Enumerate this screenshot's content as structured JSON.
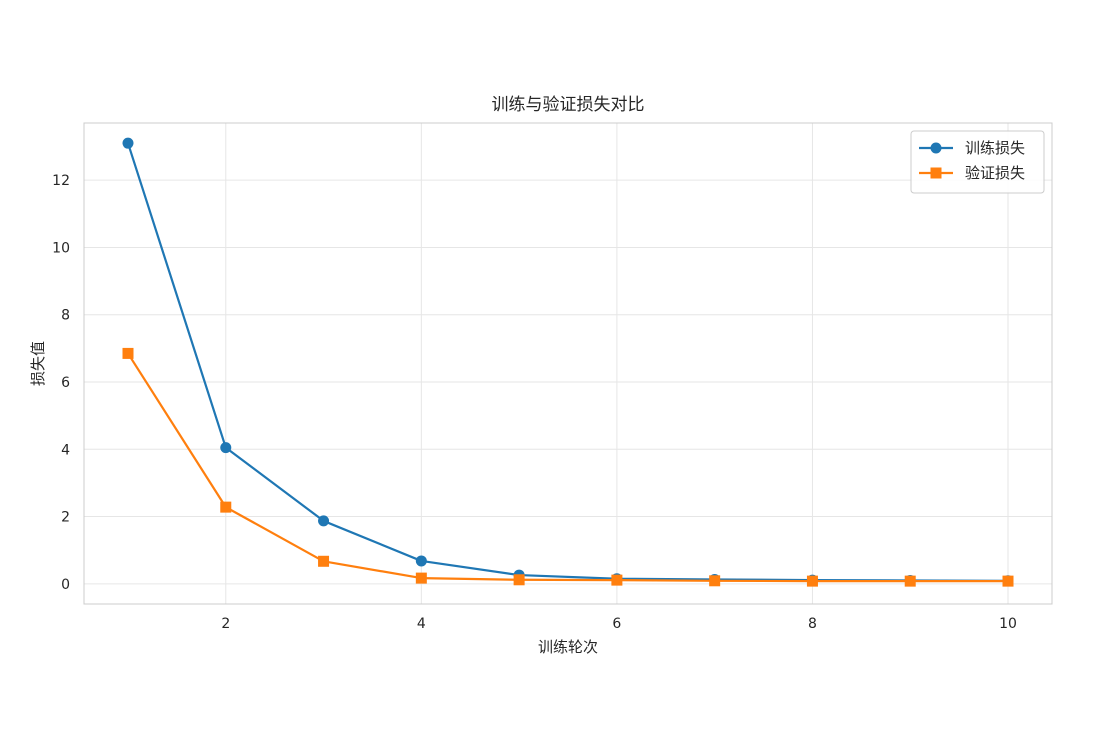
{
  "chart_data": {
    "type": "line",
    "title": "训练与验证损失对比",
    "xlabel": "训练轮次",
    "ylabel": "损失值",
    "xlim": [
      0.55,
      10.45
    ],
    "ylim": [
      -0.6,
      13.7
    ],
    "xticks": [
      2,
      4,
      6,
      8,
      10
    ],
    "yticks": [
      0,
      2,
      4,
      6,
      8,
      10,
      12
    ],
    "grid": true,
    "legend_position": "top-right",
    "x": [
      1,
      2,
      3,
      4,
      5,
      6,
      7,
      8,
      9,
      10
    ],
    "series": [
      {
        "name": "训练损失",
        "color": "#1f77b4",
        "marker": "circle",
        "values": [
          13.1,
          4.05,
          1.87,
          0.68,
          0.26,
          0.15,
          0.13,
          0.11,
          0.1,
          0.09
        ]
      },
      {
        "name": "验证损失",
        "color": "#ff7f0e",
        "marker": "square",
        "values": [
          6.85,
          2.28,
          0.67,
          0.17,
          0.12,
          0.11,
          0.09,
          0.08,
          0.08,
          0.08
        ]
      }
    ]
  }
}
